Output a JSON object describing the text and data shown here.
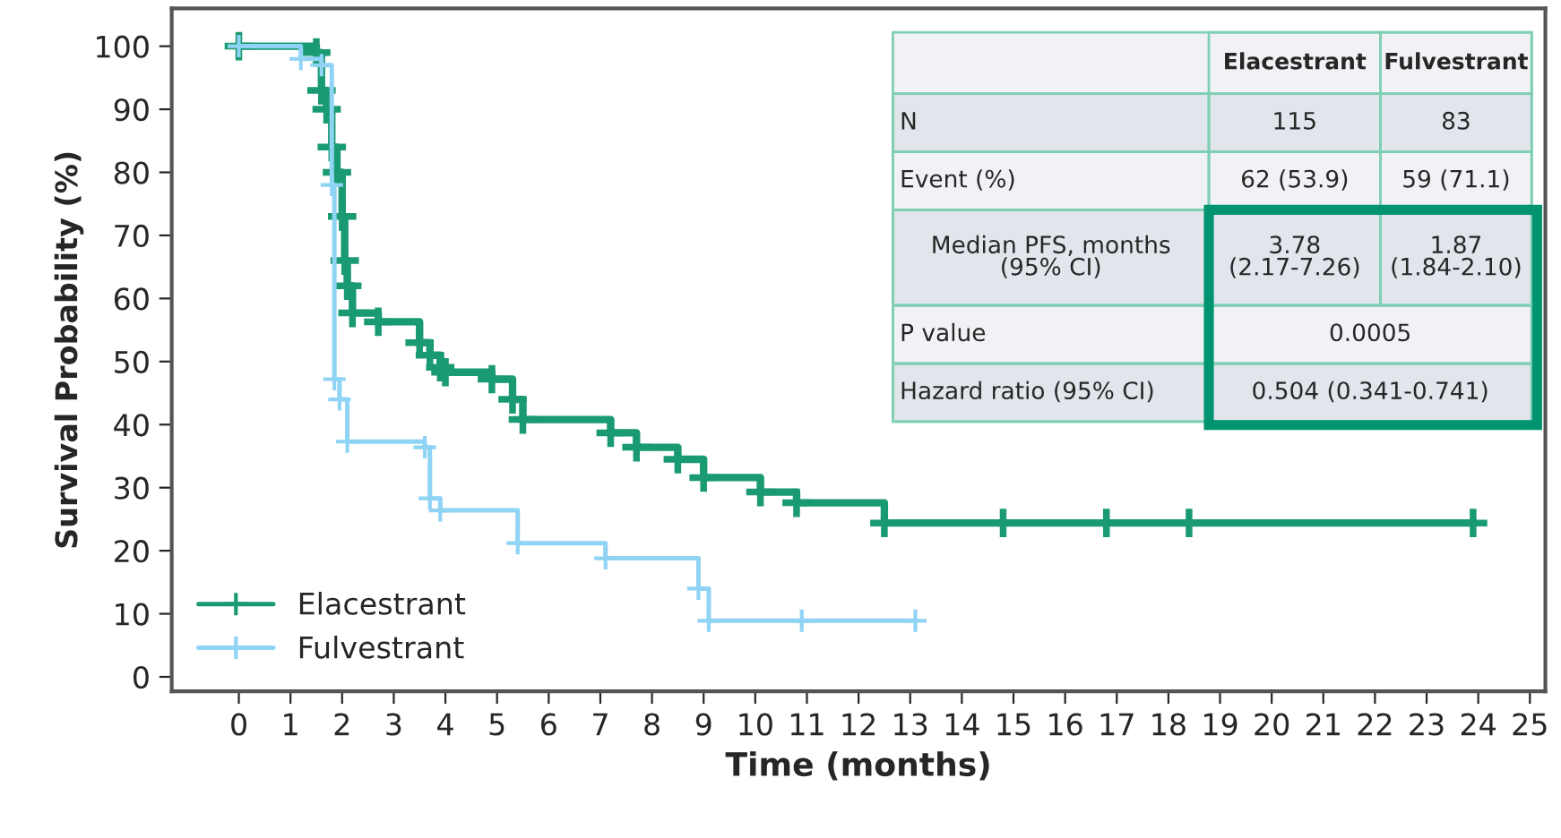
{
  "chart_data": {
    "type": "step",
    "xlabel": "Time (months)",
    "ylabel": "Survival Probability (%)",
    "xlim": [
      -1.3,
      25.3
    ],
    "ylim": [
      -2.3,
      106
    ],
    "xticks": [
      0,
      1,
      2,
      3,
      4,
      5,
      6,
      7,
      8,
      9,
      10,
      11,
      12,
      13,
      14,
      15,
      16,
      17,
      18,
      19,
      20,
      21,
      22,
      23,
      24,
      25
    ],
    "yticks": [
      0,
      10,
      20,
      30,
      40,
      50,
      60,
      70,
      80,
      90,
      100
    ],
    "grid": false,
    "legend": "bottom left",
    "marker": "cross",
    "series": [
      {
        "name": "Elacestrant",
        "color": "#1a9a73",
        "x": [
          0,
          1.5,
          1.6,
          1.7,
          1.8,
          1.9,
          2.0,
          2.05,
          2.1,
          2.2,
          2.7,
          3.5,
          3.7,
          3.9,
          4.0,
          4.9,
          5.3,
          5.5,
          7.2,
          7.7,
          8.5,
          9.0,
          10.1,
          10.8,
          12.5,
          14.8,
          16.8,
          18.4,
          23.9
        ],
        "values": [
          100,
          99,
          93,
          90,
          84,
          80,
          73,
          66,
          62,
          57.7,
          56.3,
          53,
          51,
          49.1,
          48.3,
          47.2,
          44,
          40.8,
          38.7,
          36.4,
          34.5,
          31.6,
          29.3,
          27.6,
          24.4,
          24.4,
          24.4,
          24.4,
          24.4
        ]
      },
      {
        "name": "Fulvestrant",
        "color": "#8fd3f5",
        "x": [
          0,
          1.2,
          1.6,
          1.8,
          1.85,
          1.95,
          2.1,
          3.6,
          3.7,
          3.9,
          5.4,
          7.1,
          8.9,
          9.1,
          10.9,
          13.1
        ],
        "values": [
          100,
          98,
          97,
          78,
          47.2,
          44,
          37.3,
          36.4,
          28.3,
          26.4,
          21.2,
          18.8,
          14,
          8.9,
          8.9,
          8.9
        ]
      }
    ],
    "annotations": [
      "Elacestrant",
      "Fulvestrant",
      "N",
      "115",
      "83",
      "Event (%)",
      "62 (53.9)",
      "59 (71.1)",
      "Median PFS, months\n(95% CI)",
      "3.78\n(2.17-7.26)",
      "1.87\n(1.84-2.10)",
      "P value",
      "0.0005",
      "Hazard ratio (95% CI)",
      "0.504 (0.341-0.741)"
    ]
  }
}
